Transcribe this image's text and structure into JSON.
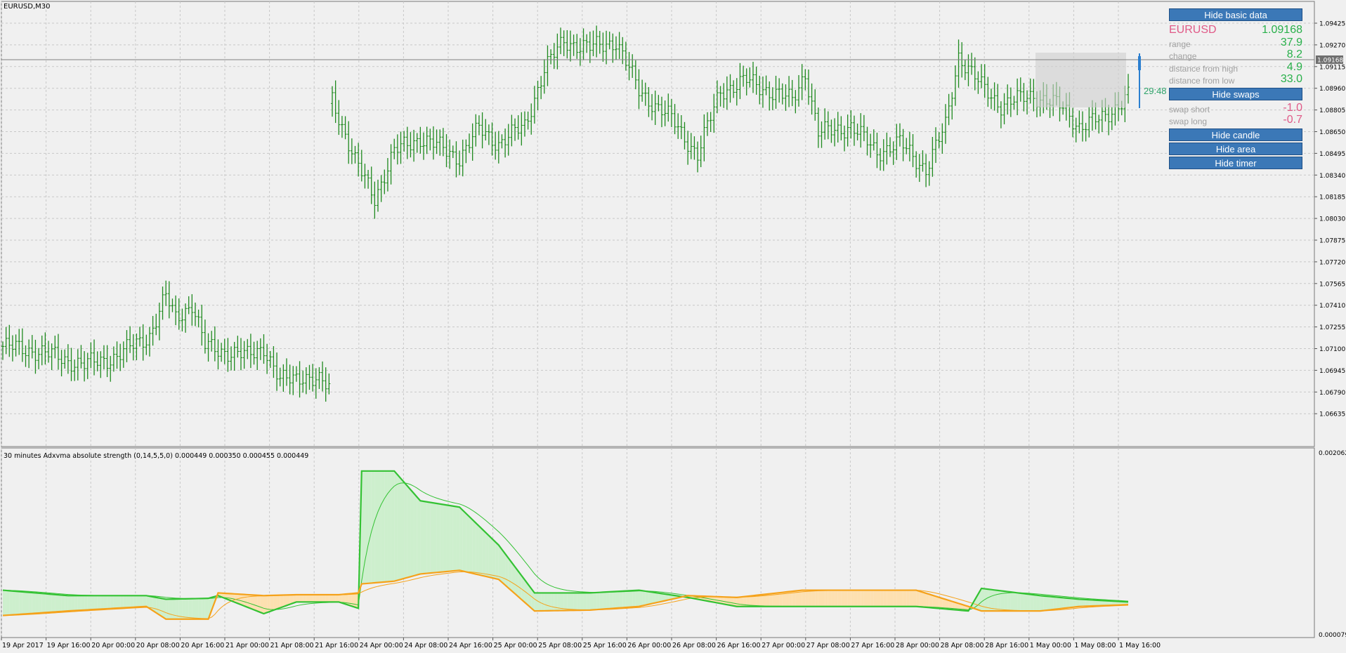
{
  "window": {
    "title": "EURUSD,M30"
  },
  "indicator": {
    "label": "30 minutes Adxvma absolute strength (0,14,5,5,0) 0.000449 0.000350 0.000455 0.000449"
  },
  "price_axis": {
    "ticks": [
      "1.09425",
      "1.09270",
      "1.09115",
      "1.08960",
      "1.08805",
      "1.08650",
      "1.08495",
      "1.08340",
      "1.08185",
      "1.08030",
      "1.07875",
      "1.07720",
      "1.07565",
      "1.07410",
      "1.07255",
      "1.07100",
      "1.06945",
      "1.06790",
      "1.06635"
    ],
    "current_price": "1.09168"
  },
  "indicator_axis": {
    "top": "0.002062",
    "bottom": "0.000079"
  },
  "time_axis": {
    "labels": [
      "19 Apr 2017",
      "19 Apr 16:00",
      "20 Apr 00:00",
      "20 Apr 08:00",
      "20 Apr 16:00",
      "21 Apr 00:00",
      "21 Apr 08:00",
      "21 Apr 16:00",
      "24 Apr 00:00",
      "24 Apr 08:00",
      "24 Apr 16:00",
      "25 Apr 00:00",
      "25 Apr 08:00",
      "25 Apr 16:00",
      "26 Apr 00:00",
      "26 Apr 08:00",
      "26 Apr 16:00",
      "27 Apr 00:00",
      "27 Apr 08:00",
      "27 Apr 16:00",
      "28 Apr 00:00",
      "28 Apr 08:00",
      "28 Apr 16:00",
      "1 May 00:00",
      "1 May 08:00",
      "1 May 16:00"
    ]
  },
  "timer": {
    "value": "29:48"
  },
  "panel": {
    "hide_basic_data": "Hide basic data",
    "symbol": "EURUSD",
    "price": "1.09168",
    "rows": [
      {
        "label": "range",
        "value": "37.9"
      },
      {
        "label": "change",
        "value": "8.2"
      },
      {
        "label": "distance from high",
        "value": "4.9"
      },
      {
        "label": "distance from low",
        "value": "33.0"
      }
    ],
    "hide_swaps": "Hide swaps",
    "swaps": [
      {
        "label": "swap short",
        "value": "-1.0"
      },
      {
        "label": "swap long",
        "value": "-0.7"
      }
    ],
    "hide_candle": "Hide candle",
    "hide_area": "Hide area",
    "hide_timer": "Hide timer"
  },
  "colors": {
    "candle": "#1f8a1f",
    "bull_line": "#33c233",
    "bear_line": "#f5a21a",
    "bull_fill": "#cdefcd",
    "bear_fill": "#fde0b0",
    "grid": "#c8c8c8"
  },
  "chart_data": [
    {
      "type": "candlestick",
      "title": "EURUSD,M30",
      "ylim": [
        1.0655,
        1.0955
      ],
      "close_anchors": [
        [
          0,
          1.0725
        ],
        [
          10,
          1.0722
        ],
        [
          25,
          1.0712
        ],
        [
          35,
          1.0718
        ],
        [
          45,
          1.0733
        ],
        [
          50,
          1.076
        ],
        [
          53,
          1.0745
        ],
        [
          58,
          1.0755
        ],
        [
          62,
          1.0725
        ],
        [
          75,
          1.0718
        ],
        [
          80,
          1.0725
        ],
        [
          85,
          1.07
        ],
        [
          92,
          1.0705
        ],
        [
          100,
          1.0696
        ],
        [
          101,
          1.09
        ],
        [
          108,
          1.0855
        ],
        [
          114,
          1.083
        ],
        [
          120,
          1.0862
        ],
        [
          128,
          1.0872
        ],
        [
          140,
          1.0858
        ],
        [
          146,
          1.0878
        ],
        [
          152,
          1.0868
        ],
        [
          160,
          1.088
        ],
        [
          166,
          1.092
        ],
        [
          172,
          1.094
        ],
        [
          180,
          1.0935
        ],
        [
          188,
          1.094
        ],
        [
          195,
          1.0905
        ],
        [
          205,
          1.0885
        ],
        [
          213,
          1.086
        ],
        [
          220,
          1.0905
        ],
        [
          228,
          1.0912
        ],
        [
          235,
          1.0905
        ],
        [
          242,
          1.0898
        ],
        [
          246,
          1.0918
        ],
        [
          250,
          1.0875
        ],
        [
          260,
          1.088
        ],
        [
          268,
          1.0862
        ],
        [
          275,
          1.0868
        ],
        [
          283,
          1.085
        ],
        [
          289,
          1.088
        ],
        [
          293,
          1.093
        ],
        [
          300,
          1.0908
        ],
        [
          306,
          1.0895
        ],
        [
          316,
          1.0902
        ],
        [
          325,
          1.0893
        ],
        [
          330,
          1.088
        ],
        [
          337,
          1.0885
        ],
        [
          345,
          1.0902
        ]
      ]
    },
    {
      "type": "line",
      "title": "Adxvma absolute strength",
      "ylim": [
        7.9e-05,
        0.002062
      ],
      "series": [
        {
          "name": "",
          "values": [
            [
              0,
              0.00058
            ],
            [
              20,
              0.00052
            ],
            [
              44,
              0.00052
            ],
            [
              50,
              0.00048
            ],
            [
              63,
              0.00049
            ],
            [
              66,
              0.00052
            ],
            [
              80,
              0.00032
            ],
            [
              90,
              0.00045
            ],
            [
              103,
              0.00045
            ],
            [
              109,
              0.00038
            ],
            [
              110,
              0.0019
            ],
            [
              120,
              0.0019
            ],
            [
              128,
              0.00157
            ],
            [
              140,
              0.0015
            ],
            [
              152,
              0.00108
            ],
            [
              163,
              0.00055
            ],
            [
              180,
              0.00055
            ],
            [
              195,
              0.00058
            ],
            [
              210,
              0.0005
            ],
            [
              225,
              0.0004
            ],
            [
              245,
              0.0004
            ],
            [
              280,
              0.0004
            ],
            [
              296,
              0.00035
            ],
            [
              300,
              0.0006
            ],
            [
              318,
              0.00052
            ],
            [
              330,
              0.00048
            ],
            [
              345,
              0.00045
            ]
          ]
        },
        {
          "name": "",
          "values": [
            [
              0,
              0.0003
            ],
            [
              20,
              0.00035
            ],
            [
              44,
              0.0004
            ],
            [
              50,
              0.00026
            ],
            [
              63,
              0.00026
            ],
            [
              66,
              0.00055
            ],
            [
              80,
              0.00052
            ],
            [
              90,
              0.00053
            ],
            [
              103,
              0.00053
            ],
            [
              109,
              0.00055
            ],
            [
              110,
              0.00065
            ],
            [
              120,
              0.00068
            ],
            [
              128,
              0.00076
            ],
            [
              140,
              0.0008
            ],
            [
              152,
              0.0007
            ],
            [
              163,
              0.00035
            ],
            [
              180,
              0.00036
            ],
            [
              195,
              0.0004
            ],
            [
              210,
              0.00052
            ],
            [
              225,
              0.0005
            ],
            [
              245,
              0.00058
            ],
            [
              280,
              0.00058
            ],
            [
              296,
              0.0004
            ],
            [
              300,
              0.00035
            ],
            [
              318,
              0.00035
            ],
            [
              330,
              0.0004
            ],
            [
              345,
              0.00042
            ]
          ]
        }
      ]
    }
  ]
}
